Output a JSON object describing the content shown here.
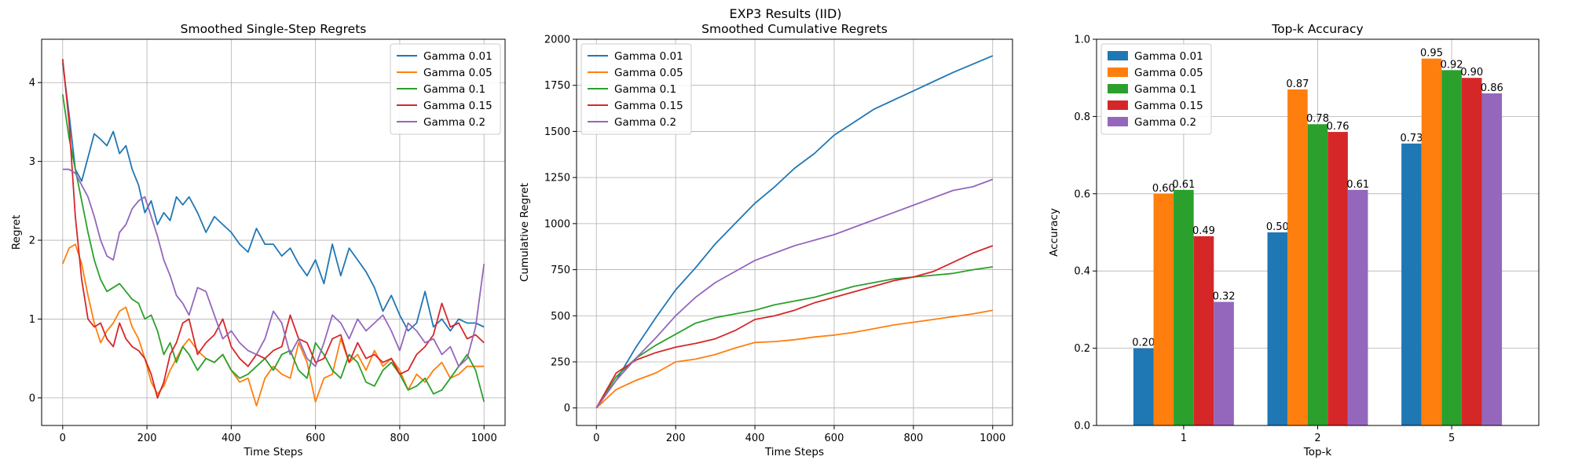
{
  "figure": {
    "title": "EXP3 Results (IID)"
  },
  "chart_data": [
    {
      "type": "line",
      "title": "Smoothed Single-Step Regrets",
      "xlabel": "Time Steps",
      "ylabel": "Regret",
      "xlim": [
        -50,
        1050
      ],
      "ylim": [
        -0.35,
        4.55
      ],
      "xticks": [
        0,
        200,
        400,
        600,
        800,
        1000
      ],
      "yticks": [
        0,
        1,
        2,
        3,
        4
      ],
      "grid": true,
      "legend": "top-right",
      "series": [
        {
          "name": "Gamma 0.01",
          "color": "#1f77b4",
          "x": [
            0,
            15,
            30,
            45,
            60,
            75,
            90,
            105,
            120,
            135,
            150,
            165,
            180,
            195,
            210,
            225,
            240,
            255,
            270,
            285,
            300,
            320,
            340,
            360,
            380,
            400,
            420,
            440,
            460,
            480,
            500,
            520,
            540,
            560,
            580,
            600,
            620,
            640,
            660,
            680,
            700,
            720,
            740,
            760,
            780,
            800,
            820,
            840,
            860,
            880,
            900,
            920,
            940,
            960,
            980,
            1000
          ],
          "y": [
            4.25,
            3.6,
            2.9,
            2.75,
            3.05,
            3.35,
            3.28,
            3.2,
            3.38,
            3.1,
            3.2,
            2.9,
            2.7,
            2.35,
            2.5,
            2.2,
            2.35,
            2.25,
            2.55,
            2.45,
            2.55,
            2.35,
            2.1,
            2.3,
            2.2,
            2.1,
            1.95,
            1.85,
            2.15,
            1.95,
            1.95,
            1.8,
            1.9,
            1.7,
            1.55,
            1.75,
            1.45,
            1.95,
            1.55,
            1.9,
            1.75,
            1.6,
            1.4,
            1.1,
            1.3,
            1.05,
            0.85,
            0.95,
            1.35,
            0.9,
            1.0,
            0.85,
            1.0,
            0.95,
            0.95,
            0.9
          ]
        },
        {
          "name": "Gamma 0.05",
          "color": "#ff7f0e",
          "x": [
            0,
            15,
            30,
            45,
            60,
            75,
            90,
            105,
            120,
            135,
            150,
            165,
            180,
            195,
            210,
            225,
            240,
            255,
            270,
            285,
            300,
            320,
            340,
            360,
            380,
            400,
            420,
            440,
            460,
            480,
            500,
            520,
            540,
            560,
            580,
            600,
            620,
            640,
            660,
            680,
            700,
            720,
            740,
            760,
            780,
            800,
            820,
            840,
            860,
            880,
            900,
            920,
            940,
            960,
            980,
            1000
          ],
          "y": [
            1.7,
            1.9,
            1.95,
            1.7,
            1.3,
            0.95,
            0.7,
            0.85,
            0.95,
            1.1,
            1.15,
            0.9,
            0.75,
            0.5,
            0.2,
            0.05,
            0.15,
            0.35,
            0.5,
            0.65,
            0.75,
            0.6,
            0.5,
            0.45,
            0.55,
            0.35,
            0.2,
            0.25,
            -0.1,
            0.25,
            0.4,
            0.3,
            0.25,
            0.7,
            0.45,
            -0.05,
            0.25,
            0.3,
            0.75,
            0.45,
            0.55,
            0.35,
            0.6,
            0.4,
            0.5,
            0.35,
            0.1,
            0.3,
            0.2,
            0.35,
            0.45,
            0.25,
            0.3,
            0.4,
            0.4,
            0.4
          ]
        },
        {
          "name": "Gamma 0.1",
          "color": "#2ca02c",
          "x": [
            0,
            15,
            30,
            45,
            60,
            75,
            90,
            105,
            120,
            135,
            150,
            165,
            180,
            195,
            210,
            225,
            240,
            255,
            270,
            285,
            300,
            320,
            340,
            360,
            380,
            400,
            420,
            440,
            460,
            480,
            500,
            520,
            540,
            560,
            580,
            600,
            620,
            640,
            660,
            680,
            700,
            720,
            740,
            760,
            780,
            800,
            820,
            840,
            860,
            880,
            900,
            920,
            940,
            960,
            980,
            1000
          ],
          "y": [
            3.85,
            3.3,
            2.9,
            2.5,
            2.1,
            1.75,
            1.5,
            1.35,
            1.4,
            1.45,
            1.35,
            1.25,
            1.2,
            1.0,
            1.05,
            0.85,
            0.55,
            0.7,
            0.45,
            0.65,
            0.55,
            0.35,
            0.5,
            0.45,
            0.55,
            0.35,
            0.25,
            0.3,
            0.4,
            0.5,
            0.35,
            0.55,
            0.6,
            0.35,
            0.25,
            0.7,
            0.55,
            0.35,
            0.25,
            0.55,
            0.45,
            0.2,
            0.15,
            0.35,
            0.45,
            0.3,
            0.1,
            0.15,
            0.25,
            0.05,
            0.1,
            0.25,
            0.4,
            0.55,
            0.35,
            -0.05
          ]
        },
        {
          "name": "Gamma 0.15",
          "color": "#d62728",
          "x": [
            0,
            15,
            30,
            45,
            60,
            75,
            90,
            105,
            120,
            135,
            150,
            165,
            180,
            195,
            210,
            225,
            240,
            255,
            270,
            285,
            300,
            320,
            340,
            360,
            380,
            400,
            420,
            440,
            460,
            480,
            500,
            520,
            540,
            560,
            580,
            600,
            620,
            640,
            660,
            680,
            700,
            720,
            740,
            760,
            780,
            800,
            820,
            840,
            860,
            880,
            900,
            920,
            940,
            960,
            980,
            1000
          ],
          "y": [
            4.3,
            3.5,
            2.3,
            1.5,
            1.0,
            0.9,
            0.95,
            0.75,
            0.65,
            0.95,
            0.75,
            0.65,
            0.6,
            0.5,
            0.3,
            0.0,
            0.2,
            0.55,
            0.7,
            0.95,
            1.0,
            0.55,
            0.7,
            0.8,
            1.0,
            0.65,
            0.5,
            0.4,
            0.55,
            0.5,
            0.6,
            0.65,
            1.05,
            0.75,
            0.7,
            0.45,
            0.5,
            0.75,
            0.8,
            0.45,
            0.7,
            0.5,
            0.55,
            0.45,
            0.5,
            0.3,
            0.35,
            0.55,
            0.65,
            0.8,
            1.2,
            0.9,
            0.95,
            0.75,
            0.8,
            0.7
          ]
        },
        {
          "name": "Gamma 0.2",
          "color": "#9467bd",
          "x": [
            0,
            15,
            30,
            45,
            60,
            75,
            90,
            105,
            120,
            135,
            150,
            165,
            180,
            195,
            210,
            225,
            240,
            255,
            270,
            285,
            300,
            320,
            340,
            360,
            380,
            400,
            420,
            440,
            460,
            480,
            500,
            520,
            540,
            560,
            580,
            600,
            620,
            640,
            660,
            680,
            700,
            720,
            740,
            760,
            780,
            800,
            820,
            840,
            860,
            880,
            900,
            920,
            940,
            960,
            980,
            1000
          ],
          "y": [
            2.9,
            2.9,
            2.85,
            2.7,
            2.55,
            2.3,
            2.0,
            1.8,
            1.75,
            2.1,
            2.2,
            2.4,
            2.5,
            2.55,
            2.3,
            2.05,
            1.75,
            1.55,
            1.3,
            1.2,
            1.05,
            1.4,
            1.35,
            1.05,
            0.75,
            0.85,
            0.7,
            0.6,
            0.55,
            0.75,
            1.1,
            0.95,
            0.55,
            0.75,
            0.5,
            0.4,
            0.7,
            1.05,
            0.95,
            0.75,
            1.0,
            0.85,
            0.95,
            1.05,
            0.85,
            0.6,
            0.95,
            0.85,
            0.7,
            0.75,
            0.55,
            0.65,
            0.4,
            0.5,
            0.9,
            1.7
          ]
        }
      ]
    },
    {
      "type": "line",
      "title": "Smoothed Cumulative Regrets",
      "xlabel": "Time Steps",
      "ylabel": "Cumulative Regret",
      "xlim": [
        -50,
        1050
      ],
      "ylim": [
        -95,
        2000
      ],
      "xticks": [
        0,
        200,
        400,
        600,
        800,
        1000
      ],
      "yticks": [
        0,
        250,
        500,
        750,
        1000,
        1250,
        1500,
        1750,
        2000
      ],
      "grid": true,
      "legend": "top-left",
      "series": [
        {
          "name": "Gamma 0.01",
          "color": "#1f77b4",
          "x": [
            0,
            50,
            100,
            150,
            200,
            250,
            300,
            350,
            400,
            450,
            500,
            550,
            600,
            650,
            700,
            750,
            800,
            850,
            900,
            950,
            1000
          ],
          "y": [
            0,
            150,
            330,
            490,
            640,
            760,
            890,
            1000,
            1110,
            1200,
            1300,
            1380,
            1480,
            1550,
            1620,
            1670,
            1720,
            1770,
            1820,
            1865,
            1910
          ]
        },
        {
          "name": "Gamma 0.05",
          "color": "#ff7f0e",
          "x": [
            0,
            50,
            100,
            150,
            200,
            250,
            300,
            350,
            400,
            450,
            500,
            550,
            600,
            650,
            700,
            750,
            800,
            850,
            900,
            950,
            1000
          ],
          "y": [
            0,
            100,
            150,
            190,
            250,
            265,
            290,
            325,
            355,
            360,
            370,
            385,
            395,
            410,
            430,
            450,
            465,
            480,
            495,
            510,
            530
          ]
        },
        {
          "name": "Gamma 0.1",
          "color": "#2ca02c",
          "x": [
            0,
            50,
            100,
            150,
            200,
            250,
            300,
            350,
            400,
            450,
            500,
            550,
            600,
            650,
            700,
            750,
            800,
            850,
            900,
            950,
            1000
          ],
          "y": [
            0,
            170,
            270,
            340,
            400,
            460,
            490,
            510,
            530,
            560,
            580,
            600,
            630,
            660,
            680,
            700,
            710,
            720,
            730,
            750,
            765
          ]
        },
        {
          "name": "Gamma 0.15",
          "color": "#d62728",
          "x": [
            0,
            50,
            100,
            150,
            200,
            250,
            300,
            350,
            400,
            450,
            500,
            550,
            600,
            650,
            700,
            750,
            800,
            850,
            900,
            950,
            1000
          ],
          "y": [
            0,
            190,
            260,
            300,
            330,
            350,
            375,
            420,
            480,
            500,
            530,
            570,
            600,
            630,
            660,
            690,
            710,
            740,
            790,
            840,
            880
          ]
        },
        {
          "name": "Gamma 0.2",
          "color": "#9467bd",
          "x": [
            0,
            50,
            100,
            150,
            200,
            250,
            300,
            350,
            400,
            450,
            500,
            550,
            600,
            650,
            700,
            750,
            800,
            850,
            900,
            950,
            1000
          ],
          "y": [
            0,
            150,
            270,
            380,
            500,
            600,
            680,
            740,
            800,
            840,
            880,
            910,
            940,
            980,
            1020,
            1060,
            1100,
            1140,
            1180,
            1200,
            1240
          ]
        }
      ]
    },
    {
      "type": "bar",
      "title": "Top-k Accuracy",
      "xlabel": "Top-k",
      "ylabel": "Accuracy",
      "ylim": [
        0,
        1.0
      ],
      "yticks": [
        0.0,
        0.2,
        0.4,
        0.6,
        0.8,
        1.0
      ],
      "categories": [
        "1",
        "2",
        "5"
      ],
      "grid": true,
      "legend": "top-left",
      "series": [
        {
          "name": "Gamma 0.01",
          "color": "#1f77b4",
          "values": [
            0.2,
            0.5,
            0.73
          ]
        },
        {
          "name": "Gamma 0.05",
          "color": "#ff7f0e",
          "values": [
            0.6,
            0.87,
            0.95
          ]
        },
        {
          "name": "Gamma 0.1",
          "color": "#2ca02c",
          "values": [
            0.61,
            0.78,
            0.92
          ]
        },
        {
          "name": "Gamma 0.15",
          "color": "#d62728",
          "values": [
            0.49,
            0.76,
            0.9
          ]
        },
        {
          "name": "Gamma 0.2",
          "color": "#9467bd",
          "values": [
            0.32,
            0.61,
            0.86
          ]
        }
      ]
    }
  ]
}
